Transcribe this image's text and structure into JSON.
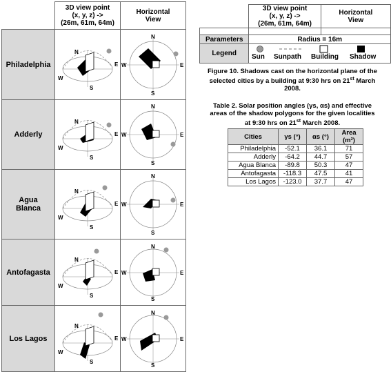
{
  "figure": {
    "col_3d_header": "3D view point (x, y, z) -> (26m, 61m, 64m)",
    "col_3d_line1": "3D view point",
    "col_3d_line2": "(x, y, z) ->",
    "col_3d_line3": "(26m, 61m, 64m)",
    "col_h_line1": "Horizontal",
    "col_h_line2": "View",
    "cities": [
      "Philadelphia",
      "Adderly",
      "Agua Blanca",
      "Antofagasta",
      "Los Lagos"
    ],
    "compass": {
      "n": "N",
      "s": "S",
      "e": "E",
      "w": "W"
    }
  },
  "legend_table": {
    "col_3d_line1": "3D view point",
    "col_3d_line2": "(x, y, z) ->",
    "col_3d_line3": "(26m, 61m, 64m)",
    "col_h_line1": "Horizontal",
    "col_h_line2": "View",
    "parameters_label": "Parameters",
    "parameters_value": "Radius = 16m",
    "legend_label": "Legend",
    "items": [
      "Sun",
      "Sunpath",
      "Building",
      "Shadow"
    ]
  },
  "figure_caption": {
    "line1": "Figure 10. Shadows cast on the horizontal plane of the",
    "line2": "selected cities by a building at 9:30 hrs on 21",
    "line2_sup": "st",
    "line2_end": " March",
    "line3": "2008."
  },
  "table2_caption": {
    "line1": "Table 2. Solar position angles (γs, αs) and effective",
    "line2": "areas of the shadow polygons for the given localities",
    "line3": "at 9:30 hrs on 21",
    "line3_sup": "st",
    "line3_end": " March 2008."
  },
  "table2": {
    "headers": [
      "Cities",
      "γs (°)",
      "αs (°)",
      "Area (m²)"
    ],
    "rows": [
      [
        "Philadelphia",
        "-52.1",
        "36.1",
        "71"
      ],
      [
        "Adderly",
        "-64.2",
        "44.7",
        "57"
      ],
      [
        "Agua Blanca",
        "-89.8",
        "50.3",
        "47"
      ],
      [
        "Antofagasta",
        "-118.3",
        "47.5",
        "41"
      ],
      [
        "Los Lagos",
        "-123.0",
        "37.7",
        "47"
      ]
    ]
  }
}
